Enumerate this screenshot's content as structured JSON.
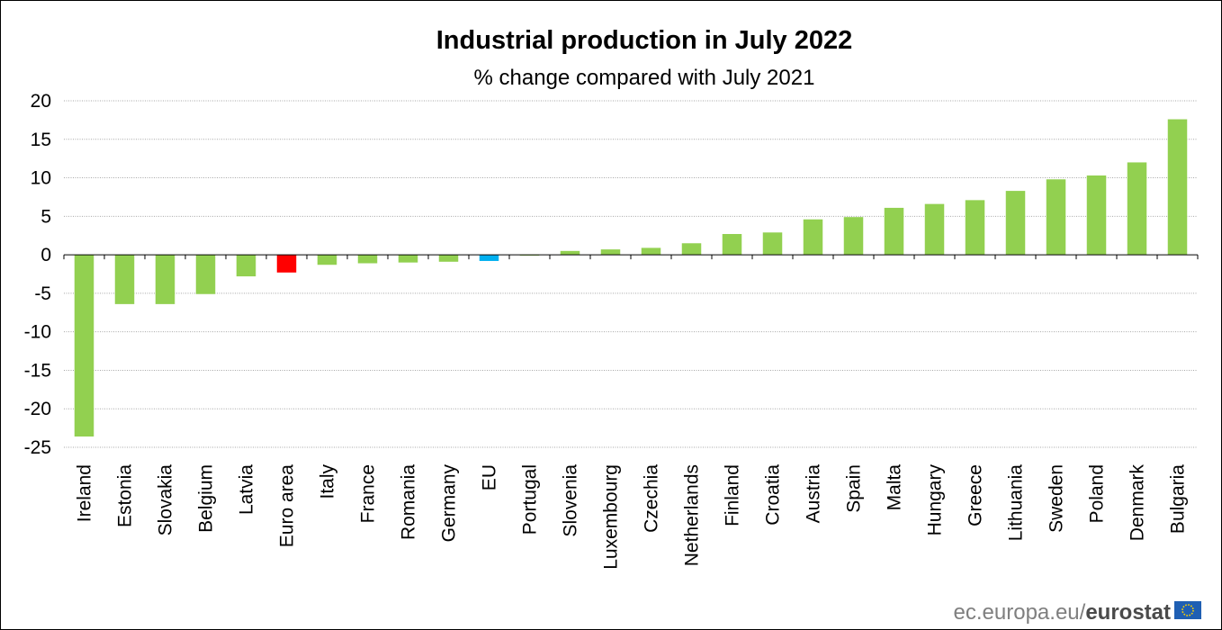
{
  "chart_data": {
    "type": "bar",
    "title": "Industrial production in July 2022",
    "subtitle": "% change compared with July 2021",
    "xlabel": "",
    "ylabel": "",
    "ylim": [
      -25,
      20
    ],
    "yticks": [
      20,
      15,
      10,
      5,
      0,
      -5,
      -10,
      -15,
      -20,
      -25
    ],
    "grid": true,
    "categories": [
      "Ireland",
      "Estonia",
      "Slovakia",
      "Belgium",
      "Latvia",
      "Euro area",
      "Italy",
      "France",
      "Romania",
      "Germany",
      "EU",
      "Portugal",
      "Slovenia",
      "Luxembourg",
      "Czechia",
      "Netherlands",
      "Finland",
      "Croatia",
      "Austria",
      "Spain",
      "Malta",
      "Hungary",
      "Greece",
      "Lithuania",
      "Sweden",
      "Poland",
      "Denmark",
      "Bulgaria"
    ],
    "values": [
      -23.6,
      -6.4,
      -6.4,
      -5.1,
      -2.8,
      -2.3,
      -1.3,
      -1.1,
      -1.0,
      -0.9,
      -0.8,
      -0.1,
      0.5,
      0.7,
      0.9,
      1.5,
      2.7,
      2.9,
      4.6,
      4.9,
      6.1,
      6.6,
      7.1,
      8.3,
      9.8,
      10.3,
      12.0,
      17.6
    ],
    "bar_colors": {
      "default": "#92d050",
      "Euro area": "#ff0000",
      "EU": "#00b0f0"
    }
  },
  "source": {
    "text": "ec.europa.eu/",
    "brand": "eurostat",
    "flag_icon": "eu-flag-icon"
  }
}
